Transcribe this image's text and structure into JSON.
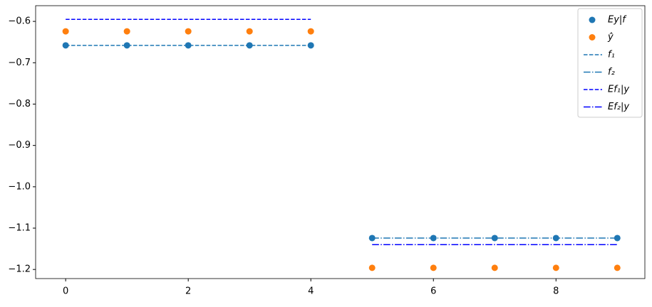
{
  "chart_data": {
    "type": "line",
    "x_ticks_note_free": null,
    "xlim": [
      -0.49,
      9.45
    ],
    "ylim": [
      -1.222,
      -0.562
    ],
    "xticks": [
      0,
      2,
      4,
      6,
      8
    ],
    "yticks": [
      {
        "value": -1.2,
        "label": "−1.2"
      },
      {
        "value": -1.1,
        "label": "−1.1"
      },
      {
        "value": -1.0,
        "label": "−1.0"
      },
      {
        "value": -0.9,
        "label": "−0.9"
      },
      {
        "value": -0.8,
        "label": "−0.8"
      },
      {
        "value": -0.7,
        "label": "−0.7"
      },
      {
        "value": -0.6,
        "label": "−0.6"
      }
    ],
    "grid": false,
    "legend": "upper right",
    "series": [
      {
        "name": "Ey|f",
        "color": "#1f77b4",
        "style": "marker",
        "x": [
          0,
          1,
          2,
          3,
          4,
          5,
          6,
          7,
          8,
          9
        ],
        "values": [
          -0.658,
          -0.658,
          -0.658,
          -0.658,
          -0.658,
          -1.124,
          -1.124,
          -1.124,
          -1.124,
          -1.124
        ]
      },
      {
        "name": "ŷ",
        "color": "#ff7f0e",
        "style": "marker",
        "x": [
          0,
          1,
          2,
          3,
          4,
          5,
          6,
          7,
          8,
          9
        ],
        "values": [
          -0.624,
          -0.624,
          -0.624,
          -0.624,
          -0.624,
          -1.196,
          -1.196,
          -1.196,
          -1.196,
          -1.196
        ]
      },
      {
        "name": "f₁",
        "color": "#1f77b4",
        "style": "dashed",
        "x": [
          0,
          1,
          2,
          3,
          4
        ],
        "values": [
          -0.658,
          -0.658,
          -0.658,
          -0.658,
          -0.658
        ]
      },
      {
        "name": "f₂",
        "color": "#1f77b4",
        "style": "dashdot",
        "x": [
          5,
          6,
          7,
          8,
          9
        ],
        "values": [
          -1.124,
          -1.124,
          -1.124,
          -1.124,
          -1.124
        ]
      },
      {
        "name": "Ef₁|y",
        "color": "#0000ff",
        "style": "dashed",
        "x": [
          0,
          1,
          2,
          3,
          4
        ],
        "values": [
          -0.595,
          -0.595,
          -0.595,
          -0.595,
          -0.595
        ]
      },
      {
        "name": "Ef₂|y",
        "color": "#0000ff",
        "style": "dashdot",
        "x": [
          5,
          6,
          7,
          8,
          9
        ],
        "values": [
          -1.14,
          -1.14,
          -1.14,
          -1.14,
          -1.14
        ]
      }
    ]
  }
}
